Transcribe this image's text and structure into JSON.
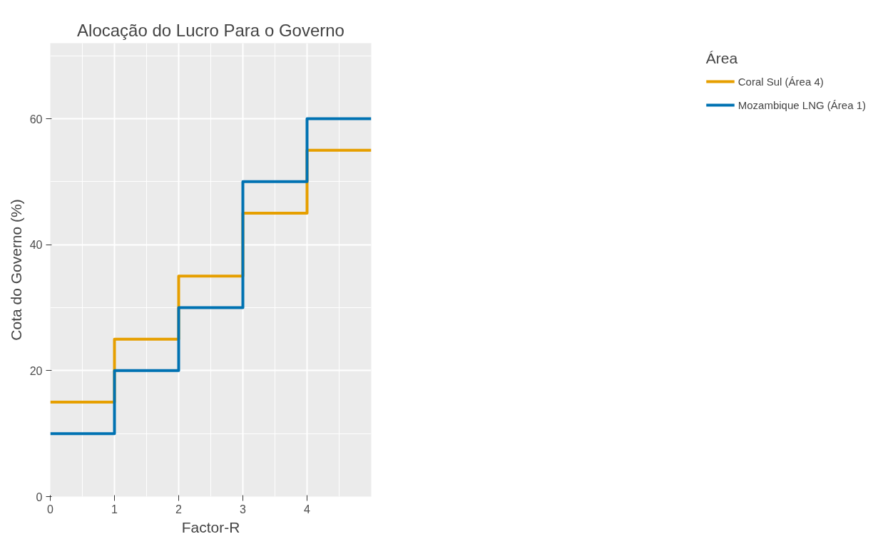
{
  "chart_data": {
    "type": "step",
    "title": "Alocação do Lucro Para o Governo",
    "xlabel": "Factor-R",
    "ylabel": "Cota do Governo (%)",
    "legend_title": "Área",
    "x": [
      0,
      1,
      2,
      3,
      4,
      5
    ],
    "series": [
      {
        "name": "Coral Sul (Área 4)",
        "color": "#e69f00",
        "values": [
          15,
          25,
          35,
          45,
          55,
          55
        ]
      },
      {
        "name": "Mozambique LNG (Área 1)",
        "color": "#0072b2",
        "values": [
          10,
          20,
          30,
          50,
          60,
          60
        ]
      }
    ],
    "xlim": [
      0,
      5
    ],
    "ylim": [
      0,
      72
    ],
    "xticks": [
      0,
      1,
      2,
      3,
      4
    ],
    "yticks": [
      0,
      20,
      40,
      60
    ],
    "grid": true,
    "legend": "right",
    "line_style": "solid"
  }
}
